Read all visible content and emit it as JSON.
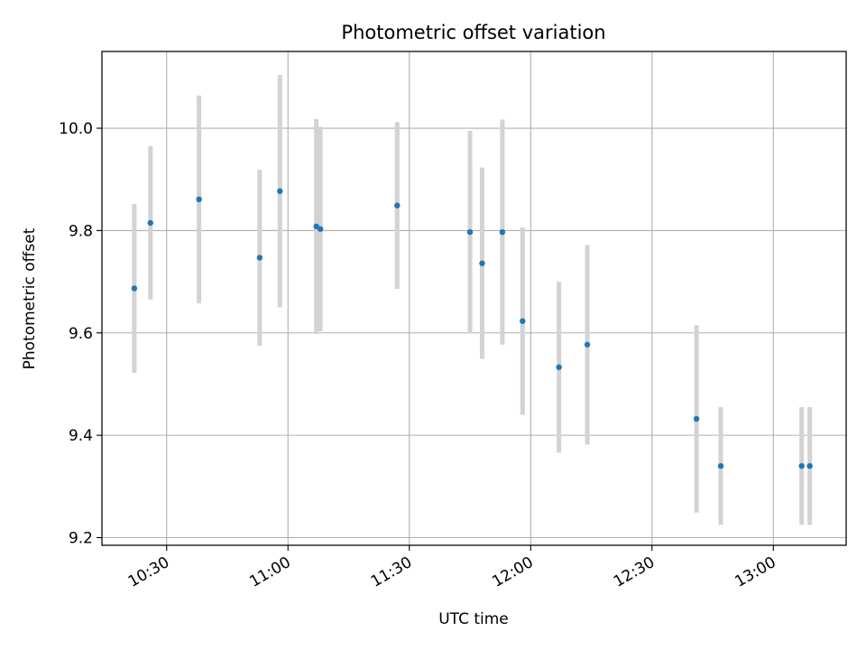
{
  "chart_data": {
    "type": "scatter",
    "title": "Photometric offset variation",
    "xlabel": "UTC time",
    "ylabel": "Photometric offset",
    "grid": true,
    "xlim": [
      "10:14",
      "13:18"
    ],
    "ylim": [
      9.185,
      10.15
    ],
    "x_ticks": [
      "10:30",
      "11:00",
      "11:30",
      "12:00",
      "12:30",
      "13:00"
    ],
    "y_ticks": [
      "9.2",
      "9.4",
      "9.6",
      "9.8",
      "10.0"
    ],
    "colors": {
      "marker": "#1f77b4",
      "errorbar": "#d3d3d3",
      "grid": "#b0b0b0"
    },
    "series": [
      {
        "points": [
          {
            "x": "10:22",
            "y": 9.687,
            "err": 0.165
          },
          {
            "x": "10:26",
            "y": 9.815,
            "err": 0.15
          },
          {
            "x": "10:38",
            "y": 9.861,
            "err": 0.203
          },
          {
            "x": "10:53",
            "y": 9.747,
            "err": 0.172
          },
          {
            "x": "10:58",
            "y": 9.877,
            "err": 0.227
          },
          {
            "x": "11:07",
            "y": 9.808,
            "err": 0.21
          },
          {
            "x": "11:08",
            "y": 9.803,
            "err": 0.2
          },
          {
            "x": "11:27",
            "y": 9.849,
            "err": 0.163
          },
          {
            "x": "11:45",
            "y": 9.797,
            "err": 0.198
          },
          {
            "x": "11:48",
            "y": 9.736,
            "err": 0.187
          },
          {
            "x": "11:53",
            "y": 9.797,
            "err": 0.22
          },
          {
            "x": "11:58",
            "y": 9.623,
            "err": 0.183
          },
          {
            "x": "12:07",
            "y": 9.533,
            "err": 0.167
          },
          {
            "x": "12:14",
            "y": 9.577,
            "err": 0.195
          },
          {
            "x": "12:41",
            "y": 9.432,
            "err": 0.183
          },
          {
            "x": "12:47",
            "y": 9.34,
            "err": 0.115
          },
          {
            "x": "13:07",
            "y": 9.34,
            "err": 0.115
          },
          {
            "x": "13:09",
            "y": 9.34,
            "err": 0.115
          }
        ]
      }
    ]
  }
}
